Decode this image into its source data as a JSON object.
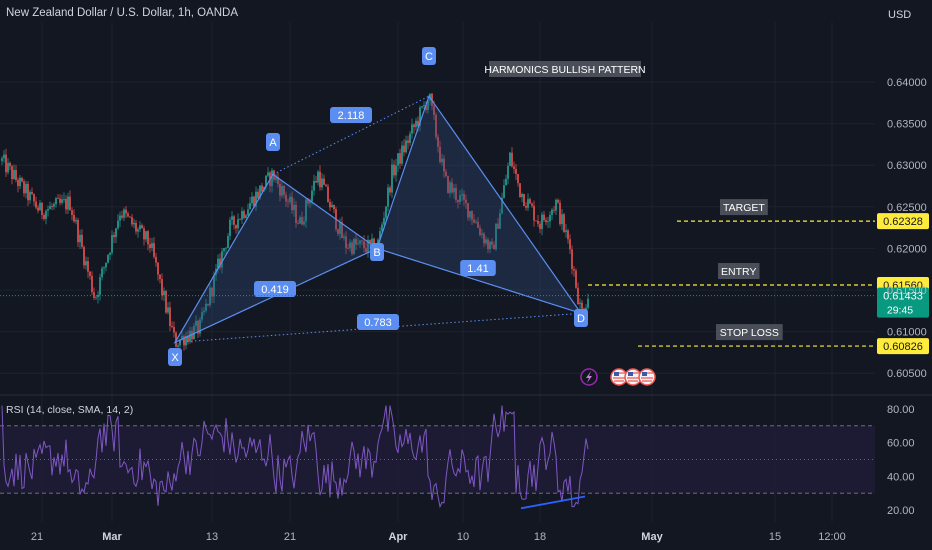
{
  "header": {
    "title": "New Zealand Dollar / U.S. Dollar, 1h, OANDA",
    "currency": "USD"
  },
  "colors": {
    "background": "#131722",
    "grid": "#1e222d",
    "text": "#b2b5be",
    "up": "#26a69a",
    "down": "#ef5350",
    "pattern_line": "#5b8ef0",
    "pattern_fill": "#2f4a7a",
    "label_bg": "#5b8ef0",
    "level_line": "#ffeb3b",
    "rsi_line": "#7e57c2",
    "rsi_band": "#1f1c36",
    "current_price_bg": "#089981"
  },
  "chart_data": [
    {
      "type": "candlestick",
      "title": "New Zealand Dollar / U.S. Dollar, 1h, OANDA",
      "y_axis": {
        "unit": "USD",
        "ticks": [
          0.605,
          0.61,
          0.615,
          0.62,
          0.625,
          0.63,
          0.635,
          0.64
        ]
      },
      "x_axis": {
        "ticks": [
          "21",
          "Mar",
          "13",
          "21",
          "Apr",
          "10",
          "18",
          "May",
          "15",
          "12:00"
        ]
      },
      "pattern": {
        "name": "HARMONICS BULLISH PATTERN",
        "points": [
          {
            "label": "X",
            "price": 0.6087
          },
          {
            "label": "A",
            "price": 0.6289
          },
          {
            "label": "B",
            "price": 0.62
          },
          {
            "label": "C",
            "price": 0.6383
          },
          {
            "label": "D",
            "price": 0.6122
          }
        ],
        "ratios": [
          {
            "label": "0.419"
          },
          {
            "label": "2.118"
          },
          {
            "label": "1.41"
          },
          {
            "label": "0.783"
          }
        ]
      },
      "levels": [
        {
          "name": "TARGET",
          "price": 0.62328,
          "label": "0.62328"
        },
        {
          "name": "ENTRY",
          "price": 0.6156,
          "label": "0.61560"
        },
        {
          "name": "STOP LOSS",
          "price": 0.60826,
          "label": "0.60826"
        }
      ],
      "current_price": {
        "price": 0.61433,
        "label": "0.61433",
        "countdown": "29:45"
      }
    },
    {
      "type": "line",
      "title": "RSI (14, close, SMA, 14, 2)",
      "y_axis": {
        "ticks": [
          20,
          40,
          60,
          80
        ],
        "labels": [
          "20.00",
          "40.00",
          "60.00",
          "80.00"
        ],
        "bands": [
          30,
          50,
          70
        ]
      },
      "divergence": {
        "from": 21,
        "to": 28
      }
    }
  ]
}
